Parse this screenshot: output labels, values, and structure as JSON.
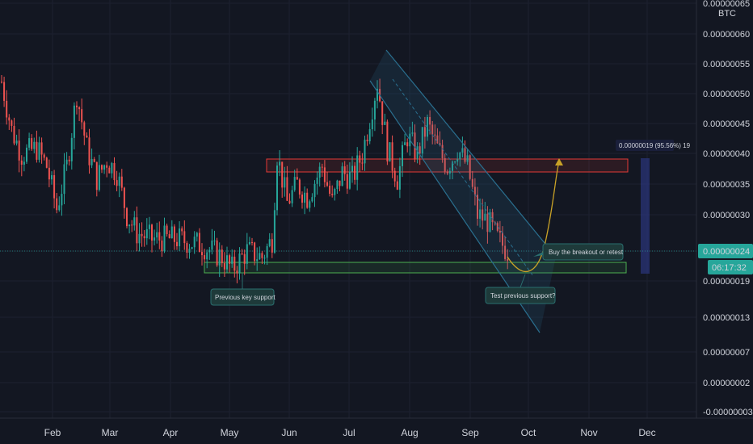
{
  "currency": "BTC",
  "current_price": "0.00000024",
  "countdown": "06:17:32",
  "colors": {
    "background": "#131722",
    "up": "#26a69a",
    "down": "#ef5350",
    "grid": "#1c2030",
    "support_zone": "#4caf50",
    "resistance_zone": "#e53935",
    "channel": "#2a6f8f",
    "arrow": "#c9a227",
    "price_tag": "#26a69a",
    "measure": "#2e3a8c"
  },
  "annotations": {
    "previous_support": "Previous key support",
    "test_support": "Test previous support?",
    "breakout": "Buy the breakout or retest",
    "measure": "0.00000019 (95.56%) 19"
  },
  "chart_data": {
    "type": "candlestick",
    "y_axis": {
      "min": -4e-07,
      "max": 6.6e-07,
      "ticks": [
        "0.00000065",
        "0.00000060",
        "0.00000055",
        "0.00000050",
        "0.00000045",
        "0.00000040",
        "0.00000035",
        "0.00000030",
        "0.00000024",
        "0.00000019",
        "0.00000013",
        "0.00000007",
        "0.00000002",
        "-0.00000003"
      ]
    },
    "x_axis": {
      "ticks": [
        "Feb",
        "Mar",
        "Apr",
        "May",
        "Jun",
        "Jul",
        "Aug",
        "Sep",
        "Oct",
        "Nov",
        "Dec"
      ]
    },
    "price_path": [
      [
        0,
        5.2e-07
      ],
      [
        4,
        4.4e-07
      ],
      [
        8,
        4e-07
      ],
      [
        14,
        4.1e-07
      ],
      [
        18,
        3.8e-07
      ],
      [
        22,
        3.1e-07
      ],
      [
        26,
        3.8e-07
      ],
      [
        30,
        5e-07
      ],
      [
        34,
        4.1e-07
      ],
      [
        38,
        3.6e-07
      ],
      [
        42,
        3.9e-07
      ],
      [
        46,
        3.7e-07
      ],
      [
        50,
        3e-07
      ],
      [
        54,
        2.7e-07
      ],
      [
        60,
        2.6e-07
      ],
      [
        70,
        2.6e-07
      ],
      [
        80,
        2.5e-07
      ],
      [
        88,
        2.3e-07
      ],
      [
        92,
        2.1e-07
      ],
      [
        98,
        2.4e-07
      ],
      [
        104,
        2.3e-07
      ],
      [
        108,
        2.6e-07
      ],
      [
        110,
        4e-07
      ],
      [
        114,
        3.2e-07
      ],
      [
        118,
        3.5e-07
      ],
      [
        122,
        3.3e-07
      ],
      [
        128,
        3.8e-07
      ],
      [
        132,
        3.2e-07
      ],
      [
        136,
        3.7e-07
      ],
      [
        140,
        3.6e-07
      ],
      [
        144,
        4e-07
      ],
      [
        147,
        4.6e-07
      ],
      [
        150,
        5.2e-07
      ],
      [
        154,
        4.1e-07
      ],
      [
        158,
        3.6e-07
      ],
      [
        162,
        4.3e-07
      ],
      [
        166,
        4e-07
      ],
      [
        170,
        4.5e-07
      ],
      [
        174,
        4.1e-07
      ],
      [
        178,
        3.8e-07
      ],
      [
        182,
        4.1e-07
      ],
      [
        186,
        3.8e-07
      ],
      [
        190,
        3e-07
      ],
      [
        194,
        2.9e-07
      ],
      [
        198,
        2.6e-07
      ],
      [
        202,
        2.4e-07
      ]
    ],
    "support_zone": [
      2e-07,
      2.2e-07
    ],
    "resistance_zone": [
      3.8e-07,
      4e-07
    ]
  }
}
